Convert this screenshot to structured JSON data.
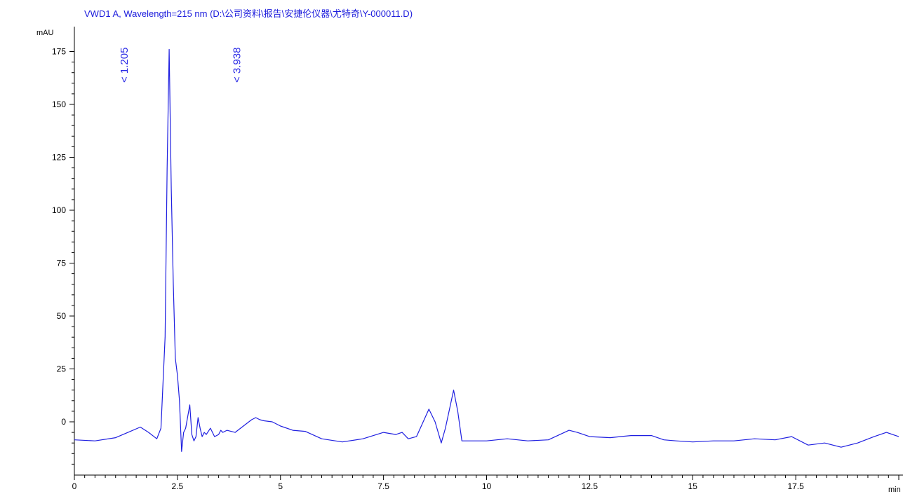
{
  "chart_data": {
    "type": "line",
    "title": "VWD1 A, Wavelength=215 nm (D:\\公司资料\\报告\\安捷伦仪器\\尤特奇\\Y-000011.D)",
    "xlabel": "min",
    "ylabel": "mAU",
    "xlim": [
      0,
      20
    ],
    "ylim": [
      -25,
      180
    ],
    "x_ticks": [
      0,
      2.5,
      5,
      7.5,
      10,
      12.5,
      15,
      17.5
    ],
    "x_tick_labels": [
      "0",
      "2.5",
      "5",
      "7.5",
      "10",
      "12.5",
      "15",
      "17.5"
    ],
    "y_ticks": [
      0,
      25,
      50,
      75,
      100,
      125,
      150,
      175
    ],
    "y_tick_labels": [
      "0",
      "25",
      "50",
      "75",
      "100",
      "125",
      "150",
      "175"
    ],
    "grid": false,
    "legend": "none",
    "color": "#1f1fe0",
    "annotations": [
      {
        "label": "< 1.205",
        "x": 1.205
      },
      {
        "label": "< 3.938",
        "x": 3.938
      }
    ],
    "series": [
      {
        "x": [
          0,
          0.5,
          1.0,
          1.3,
          1.6,
          1.8,
          2.0,
          2.1,
          2.2,
          2.25,
          2.3,
          2.35,
          2.4,
          2.45,
          2.5,
          2.55,
          2.6,
          2.65,
          2.7,
          2.8,
          2.85,
          2.9,
          2.95,
          3.0,
          3.05,
          3.1,
          3.15,
          3.2,
          3.3,
          3.4,
          3.5,
          3.55,
          3.6,
          3.7,
          3.9,
          4.1,
          4.3,
          4.4,
          4.5,
          4.6,
          4.8,
          5.0,
          5.3,
          5.6,
          6.0,
          6.5,
          7.0,
          7.5,
          7.8,
          7.95,
          8.1,
          8.3,
          8.6,
          8.75,
          8.9,
          9.0,
          9.2,
          9.3,
          9.4,
          9.6,
          10.0,
          10.5,
          11.0,
          11.5,
          12.0,
          12.2,
          12.5,
          13.0,
          13.5,
          14.0,
          14.3,
          14.6,
          15.0,
          15.5,
          16.0,
          16.5,
          17.0,
          17.4,
          17.8,
          18.2,
          18.6,
          19.0,
          19.4,
          19.7,
          20.0
        ],
        "y": [
          -8.5,
          -9,
          -7.5,
          -5,
          -2.5,
          -5,
          -8,
          -3,
          40,
          120,
          176,
          110,
          65,
          30,
          22,
          10,
          -14,
          -5,
          -3,
          8,
          -6,
          -9,
          -7,
          2,
          -3,
          -7,
          -5,
          -6,
          -3,
          -7,
          -6,
          -4,
          -5,
          -4,
          -5,
          -2,
          1,
          2,
          1,
          0.5,
          0,
          -2,
          -4,
          -4.5,
          -8,
          -9.5,
          -8,
          -5,
          -6,
          -5,
          -8,
          -7,
          6,
          0,
          -10,
          -3,
          15,
          5,
          -9,
          -9,
          -9,
          -8,
          -9,
          -8.5,
          -4,
          -5,
          -7,
          -7.5,
          -6.5,
          -6.5,
          -8.5,
          -9,
          -9.5,
          -9,
          -9,
          -8,
          -8.5,
          -7,
          -11,
          -10,
          -12,
          -10,
          -7,
          -5,
          -7
        ]
      }
    ]
  }
}
